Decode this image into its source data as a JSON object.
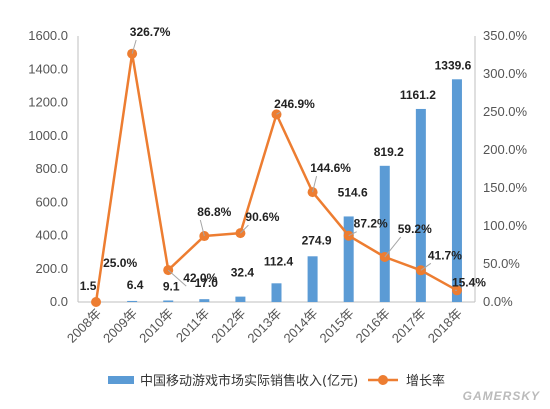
{
  "chart_data": {
    "type": "bar+line",
    "categories": [
      "2008年",
      "2009年",
      "2010年",
      "2011年",
      "2012年",
      "2013年",
      "2014年",
      "2015年",
      "2016年",
      "2017年",
      "2018年"
    ],
    "series": [
      {
        "name": "中国移动游戏市场实际销售收入(亿元)",
        "type": "bar",
        "axis": "left",
        "values": [
          1.5,
          6.4,
          9.1,
          17.0,
          32.4,
          112.4,
          274.9,
          514.6,
          819.2,
          1161.2,
          1339.6
        ],
        "labels": [
          "1.5",
          "6.4",
          "9.1",
          "17.0",
          "32.4",
          "112.4",
          "274.9",
          "514.6",
          "819.2",
          "1161.2",
          "1339.6"
        ],
        "color": "#5b9bd5"
      },
      {
        "name": "增长率",
        "type": "line",
        "axis": "right",
        "values": [
          0,
          326.7,
          42.0,
          86.8,
          90.6,
          246.9,
          144.6,
          87.2,
          59.2,
          41.7,
          15.4
        ],
        "labels": [
          "",
          "326.7%",
          "42.0%",
          "86.8%",
          "90.6%",
          "246.9%",
          "144.6%",
          "87.2%",
          "59.2%",
          "41.7%",
          "15.4%"
        ],
        "color": "#ed7d31"
      }
    ],
    "extra_label": "25.0%",
    "y_left": {
      "ylim": [
        0,
        1600
      ],
      "ticks": [
        "0.0",
        "200.0",
        "400.0",
        "600.0",
        "800.0",
        "1000.0",
        "1200.0",
        "1400.0",
        "1600.0"
      ]
    },
    "y_right": {
      "ylim": [
        0,
        350
      ],
      "ticks": [
        "0.0%",
        "50.0%",
        "100.0%",
        "150.0%",
        "200.0%",
        "250.0%",
        "300.0%",
        "350.0%"
      ]
    },
    "legend_position": "bottom",
    "grid": false
  },
  "watermark": "GAMERSKY"
}
